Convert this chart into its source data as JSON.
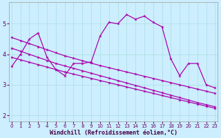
{
  "title": "",
  "xlabel": "Windchill (Refroidissement éolien,°C)",
  "bg_color": "#cceeff",
  "line_color": "#aa00aa",
  "grid_color": "#aadddd",
  "hours": [
    0,
    1,
    2,
    3,
    4,
    5,
    6,
    7,
    8,
    9,
    10,
    11,
    12,
    13,
    14,
    15,
    16,
    17,
    18,
    19,
    20,
    21,
    22,
    23
  ],
  "series1": [
    3.6,
    4.0,
    4.5,
    4.7,
    3.9,
    3.5,
    3.3,
    3.7,
    3.7,
    3.75,
    4.6,
    5.05,
    5.0,
    5.3,
    5.15,
    5.25,
    5.05,
    4.9,
    3.85,
    3.3,
    3.7,
    3.7,
    3.0,
    2.9
  ],
  "series2_x": [
    0,
    1,
    2,
    3,
    4,
    5,
    6,
    7,
    8,
    9,
    10,
    11,
    12,
    13,
    14,
    15,
    16,
    17,
    18,
    19,
    20,
    21,
    22,
    23
  ],
  "series2_y": [
    4.55,
    4.45,
    4.35,
    4.25,
    4.15,
    4.05,
    3.95,
    3.87,
    3.79,
    3.71,
    3.63,
    3.56,
    3.49,
    3.42,
    3.35,
    3.28,
    3.21,
    3.14,
    3.07,
    3.0,
    2.93,
    2.86,
    2.79,
    2.72
  ],
  "series3_x": [
    0,
    1,
    2,
    3,
    4,
    5,
    6,
    7,
    8,
    9,
    10,
    11,
    12,
    13,
    14,
    15,
    16,
    17,
    18,
    19,
    20,
    21,
    22,
    23
  ],
  "series3_y": [
    4.2,
    4.1,
    4.0,
    3.9,
    3.8,
    3.7,
    3.62,
    3.54,
    3.46,
    3.38,
    3.3,
    3.22,
    3.14,
    3.06,
    2.98,
    2.9,
    2.82,
    2.74,
    2.66,
    2.58,
    2.5,
    2.42,
    2.35,
    2.28
  ],
  "series4_x": [
    0,
    1,
    2,
    3,
    4,
    5,
    6,
    7,
    8,
    9,
    10,
    11,
    12,
    13,
    14,
    15,
    16,
    17,
    18,
    19,
    20,
    21,
    22,
    23
  ],
  "series4_y": [
    3.9,
    3.82,
    3.74,
    3.66,
    3.58,
    3.5,
    3.42,
    3.35,
    3.28,
    3.21,
    3.14,
    3.07,
    3.0,
    2.93,
    2.86,
    2.79,
    2.72,
    2.65,
    2.58,
    2.51,
    2.44,
    2.37,
    2.3,
    2.23
  ],
  "ylim": [
    1.8,
    5.7
  ],
  "xlim": [
    -0.3,
    23.3
  ],
  "yticks": [
    2,
    3,
    4,
    5
  ],
  "xticks": [
    0,
    1,
    2,
    3,
    4,
    5,
    6,
    7,
    8,
    9,
    10,
    11,
    12,
    13,
    14,
    15,
    16,
    17,
    18,
    19,
    20,
    21,
    22,
    23
  ]
}
